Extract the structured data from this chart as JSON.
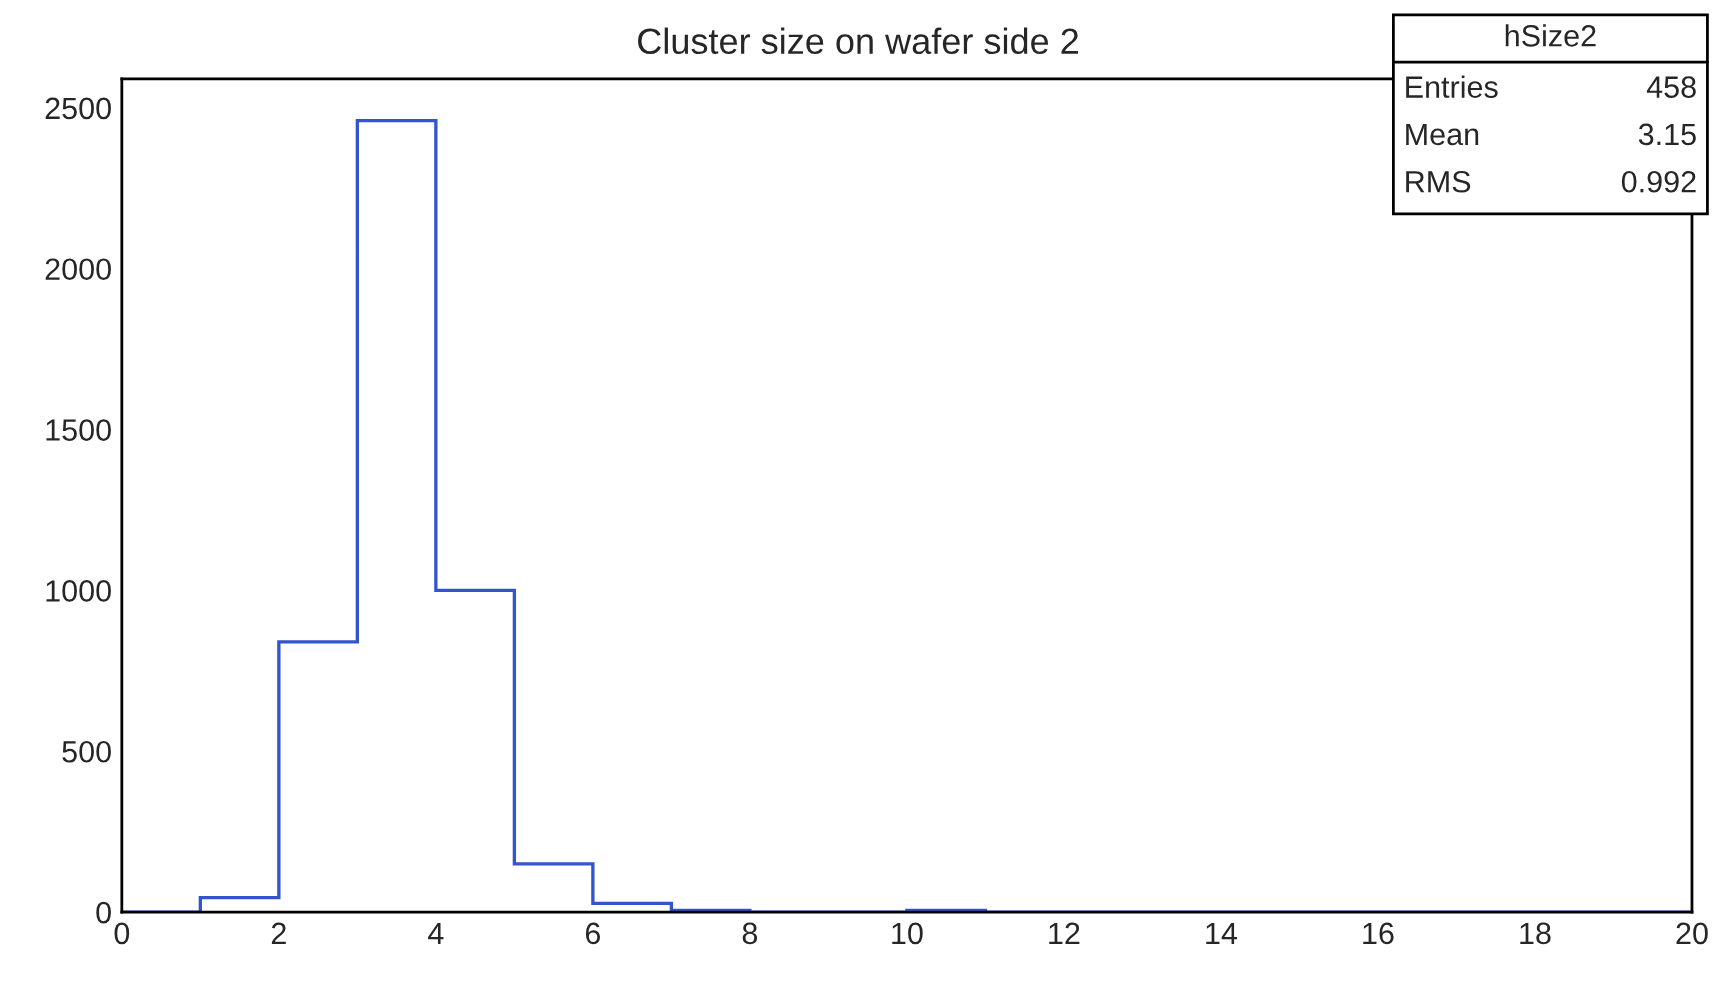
{
  "chart_data": {
    "type": "histogram",
    "title": "Cluster size on wafer side 2",
    "bins": [
      0,
      1,
      2,
      3,
      4,
      5,
      6,
      7,
      8,
      9,
      10,
      11,
      12,
      13,
      14,
      15,
      16,
      17,
      18,
      19,
      20
    ],
    "values": [
      0,
      45,
      840,
      2460,
      1000,
      150,
      27,
      5,
      0,
      0,
      5,
      0,
      0,
      0,
      0,
      0,
      0,
      0,
      0,
      0
    ],
    "color": "#3355cc",
    "xlim": [
      0,
      20
    ],
    "xticks": [
      0,
      2,
      4,
      6,
      8,
      10,
      12,
      14,
      16,
      18,
      20
    ],
    "ylim": [
      0,
      2590
    ],
    "yticks": [
      0,
      500,
      1000,
      1500,
      2000,
      2500
    ],
    "grid": false,
    "annotations": [
      "hSize2",
      "Entries",
      "458",
      "Mean",
      "3.15",
      "RMS",
      "0.992"
    ]
  }
}
